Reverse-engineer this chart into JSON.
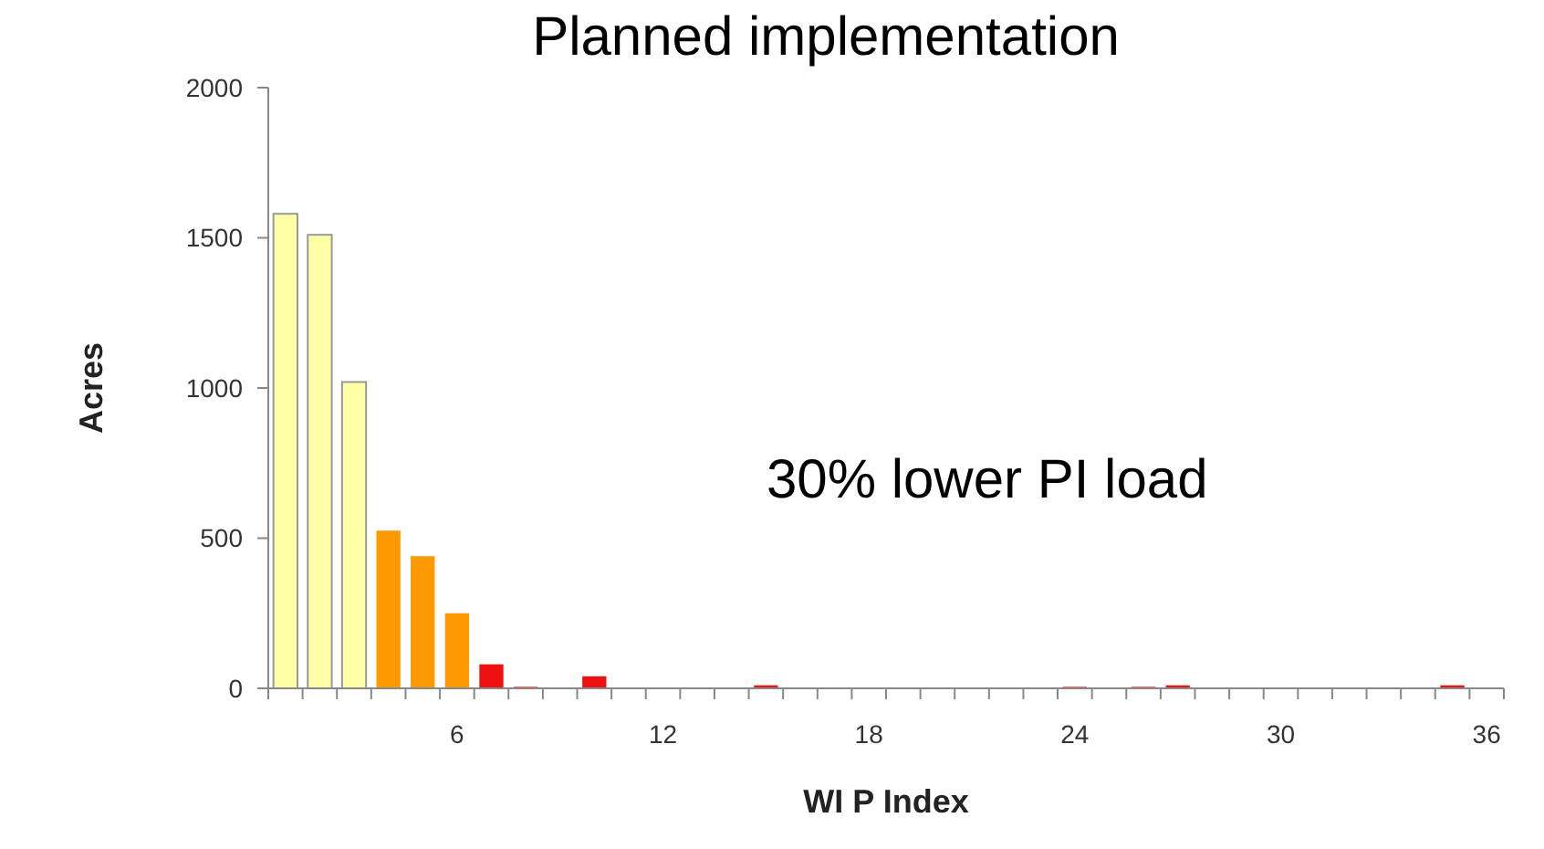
{
  "chart_data": {
    "type": "bar",
    "title": "Planned implementation",
    "xlabel": "WI P Index",
    "ylabel": "Acres",
    "annotations": [
      "30% lower PI load"
    ],
    "categories": [
      null,
      null,
      null,
      null,
      null,
      "6",
      null,
      null,
      null,
      null,
      null,
      "12",
      null,
      null,
      null,
      null,
      null,
      "18",
      null,
      null,
      null,
      null,
      null,
      "24",
      null,
      null,
      null,
      null,
      null,
      "30",
      null,
      null,
      null,
      null,
      null,
      "36"
    ],
    "values": [
      1580,
      1510,
      1020,
      525,
      440,
      250,
      80,
      5,
      0,
      40,
      0,
      0,
      0,
      0,
      10,
      0,
      0,
      0,
      0,
      0,
      0,
      0,
      0,
      5,
      0,
      5,
      10,
      0,
      0,
      0,
      0,
      0,
      0,
      0,
      10,
      0
    ],
    "colors": [
      "#ffffa6",
      "#ffffa6",
      "#ffffa6",
      "#ff9900",
      "#ff9900",
      "#ff9900",
      "#ee1111",
      "#ee1111",
      "#ee1111",
      "#ee1111",
      "#ee1111",
      "#ee1111",
      "#ee1111",
      "#ee1111",
      "#ee1111",
      "#ee1111",
      "#ee1111",
      "#ee1111",
      "#ee1111",
      "#ee1111",
      "#ee1111",
      "#ee1111",
      "#ee1111",
      "#ee1111",
      "#ee1111",
      "#ee1111",
      "#ee1111",
      "#ee1111",
      "#ee1111",
      "#ee1111",
      "#ee1111",
      "#ee1111",
      "#ee1111",
      "#ee1111",
      "#ee1111",
      "#ee1111"
    ],
    "ylim": [
      0,
      2000
    ],
    "yticks": [
      0,
      500,
      1000,
      1500,
      2000
    ],
    "grid": false
  }
}
